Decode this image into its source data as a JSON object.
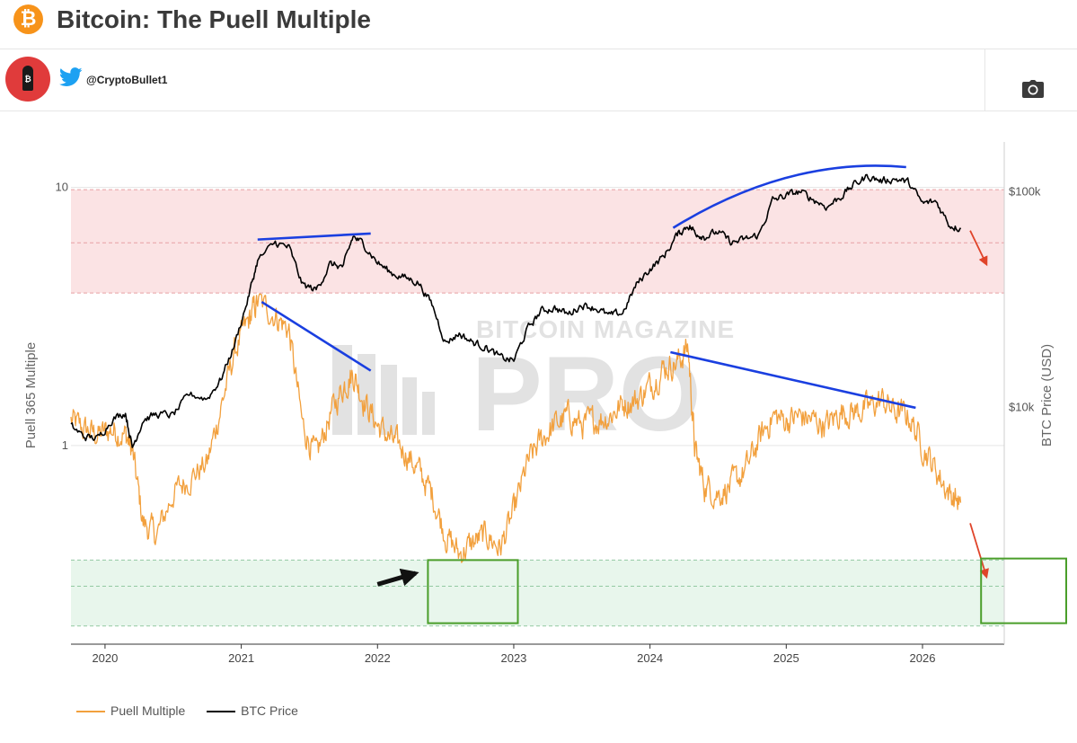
{
  "header": {
    "logo_glyph": "₿",
    "title": "Bitcoin: The Puell Multiple"
  },
  "user": {
    "handle": "@CryptoBullet1",
    "icon": "twitter-bird-icon",
    "avatar_glyph": "₿"
  },
  "toolbar": {
    "screenshot_icon": "camera-icon"
  },
  "watermark": {
    "line1": "BITCOIN MAGAZINE",
    "line2": "PRO"
  },
  "legend": {
    "puell_label": "Puell Multiple",
    "btc_label": "BTC Price"
  },
  "colors": {
    "puell": "#f2a03d",
    "btc": "#000000",
    "trend": "#1a3fe0",
    "arrow_red": "#e0442a",
    "box_green": "#4a9e2a",
    "red_band": "#fbe3e4",
    "green_band": "#e8f6ec"
  },
  "chart_data": {
    "type": "line",
    "title": "Bitcoin: The Puell Multiple",
    "x_ticks": [
      "2020",
      "2021",
      "2022",
      "2023",
      "2024",
      "2025",
      "2026"
    ],
    "x_range": [
      2019.75,
      2026.6
    ],
    "y_left": {
      "label": "Puell 365 Multiple",
      "scale": "log",
      "ticks": [
        "10",
        "1"
      ],
      "tick_values": [
        10,
        1
      ],
      "range": [
        0.17,
        15
      ]
    },
    "y_right": {
      "label": "BTC Price (USD)",
      "scale": "log",
      "ticks": [
        "$100k",
        "$10k"
      ],
      "tick_values": [
        100000,
        10000
      ],
      "range": [
        800,
        170000
      ]
    },
    "bands": [
      {
        "name": "overvalued-zone",
        "from": 3.9,
        "to": 9.8,
        "mid": 6.1
      },
      {
        "name": "undervalued-zone",
        "from": 0.2,
        "to": 0.36,
        "mid": 0.285
      }
    ],
    "series": [
      {
        "name": "Puell Multiple",
        "axis": "left",
        "x": [
          2019.75,
          2019.85,
          2019.95,
          2020.05,
          2020.15,
          2020.2,
          2020.28,
          2020.38,
          2020.5,
          2020.62,
          2020.75,
          2020.85,
          2020.95,
          2021.05,
          2021.12,
          2021.25,
          2021.35,
          2021.45,
          2021.55,
          2021.65,
          2021.75,
          2021.82,
          2021.9,
          2022.0,
          2022.1,
          2022.2,
          2022.3,
          2022.4,
          2022.5,
          2022.6,
          2022.7,
          2022.8,
          2022.9,
          2023.0,
          2023.1,
          2023.2,
          2023.3,
          2023.4,
          2023.5,
          2023.6,
          2023.7,
          2023.8,
          2023.9,
          2024.0,
          2024.1,
          2024.2,
          2024.28,
          2024.33,
          2024.4,
          2024.5,
          2024.6,
          2024.7,
          2024.8,
          2024.9,
          2025.0,
          2025.1,
          2025.2,
          2025.3,
          2025.4,
          2025.5,
          2025.6,
          2025.7,
          2025.8,
          2025.9,
          2026.0,
          2026.1,
          2026.2,
          2026.28
        ],
        "values": [
          1.25,
          1.15,
          1.1,
          1.15,
          1.1,
          0.95,
          0.5,
          0.45,
          0.65,
          0.75,
          0.85,
          1.4,
          2.3,
          3.0,
          3.6,
          3.2,
          2.8,
          1.2,
          0.9,
          1.3,
          1.7,
          1.9,
          1.5,
          1.2,
          1.05,
          0.95,
          0.8,
          0.65,
          0.45,
          0.38,
          0.42,
          0.45,
          0.4,
          0.55,
          0.85,
          1.05,
          1.2,
          1.3,
          1.2,
          1.25,
          1.3,
          1.45,
          1.5,
          1.7,
          2.0,
          2.1,
          2.4,
          0.95,
          0.7,
          0.65,
          0.7,
          0.8,
          1.05,
          1.3,
          1.25,
          1.3,
          1.25,
          1.2,
          1.35,
          1.35,
          1.4,
          1.5,
          1.35,
          1.3,
          1.0,
          0.8,
          0.65,
          0.6
        ]
      },
      {
        "name": "BTC Price",
        "axis": "right",
        "x": [
          2019.75,
          2019.85,
          2019.95,
          2020.05,
          2020.15,
          2020.2,
          2020.28,
          2020.38,
          2020.5,
          2020.62,
          2020.75,
          2020.85,
          2020.95,
          2021.05,
          2021.12,
          2021.25,
          2021.35,
          2021.45,
          2021.55,
          2021.65,
          2021.75,
          2021.82,
          2021.9,
          2022.0,
          2022.1,
          2022.2,
          2022.3,
          2022.4,
          2022.5,
          2022.6,
          2022.7,
          2022.8,
          2022.9,
          2023.0,
          2023.1,
          2023.2,
          2023.3,
          2023.4,
          2023.5,
          2023.6,
          2023.7,
          2023.8,
          2023.9,
          2024.0,
          2024.1,
          2024.2,
          2024.28,
          2024.33,
          2024.4,
          2024.5,
          2024.6,
          2024.7,
          2024.8,
          2024.9,
          2025.0,
          2025.1,
          2025.2,
          2025.3,
          2025.4,
          2025.5,
          2025.6,
          2025.7,
          2025.8,
          2025.9,
          2026.0,
          2026.1,
          2026.2,
          2026.28
        ],
        "values": [
          8200,
          7300,
          7200,
          8800,
          9500,
          6500,
          8800,
          9300,
          9200,
          11500,
          11000,
          13500,
          19500,
          32000,
          48000,
          58000,
          55000,
          37000,
          35000,
          46000,
          45000,
          62000,
          57000,
          47000,
          42000,
          40000,
          38000,
          30000,
          20000,
          22000,
          20000,
          19000,
          17000,
          16500,
          23000,
          28000,
          29000,
          27000,
          30000,
          29000,
          26500,
          27500,
          37000,
          44000,
          50000,
          63000,
          70000,
          65000,
          62000,
          65000,
          58000,
          60000,
          63000,
          91000,
          96000,
          100000,
          92000,
          85000,
          95000,
          108000,
          118000,
          112000,
          115000,
          110000,
          88000,
          90000,
          70000,
          68000
        ]
      }
    ],
    "annotations": [
      {
        "type": "trend-line",
        "axis": "right",
        "from": [
          2021.12,
          60000
        ],
        "to": [
          2021.95,
          64000
        ]
      },
      {
        "type": "trend-line",
        "axis": "left",
        "from": [
          2021.15,
          3.6
        ],
        "to": [
          2021.95,
          1.95
        ]
      },
      {
        "type": "trend-line",
        "axis": "right",
        "from": [
          2024.17,
          68000
        ],
        "to": [
          2025.88,
          130000
        ]
      },
      {
        "type": "trend-line",
        "axis": "left",
        "from": [
          2024.15,
          2.3
        ],
        "to": [
          2025.95,
          1.4
        ]
      },
      {
        "type": "arrow",
        "color": "black",
        "from": [
          2022.0,
          0.29
        ],
        "to": [
          2022.28,
          0.32
        ]
      },
      {
        "type": "arrow",
        "color": "red",
        "axis": "right",
        "from": [
          2026.35,
          66000
        ],
        "to": [
          2026.47,
          46000
        ]
      },
      {
        "type": "arrow",
        "color": "red",
        "axis": "left",
        "from": [
          2026.35,
          0.5
        ],
        "to": [
          2026.47,
          0.31
        ]
      },
      {
        "type": "box",
        "color": "green",
        "x": [
          2022.37,
          2023.03
        ],
        "y": [
          0.205,
          0.36
        ]
      },
      {
        "type": "box",
        "color": "green",
        "x": [
          2026.43,
          2027.14
        ],
        "y": [
          0.205,
          0.365
        ]
      }
    ]
  }
}
